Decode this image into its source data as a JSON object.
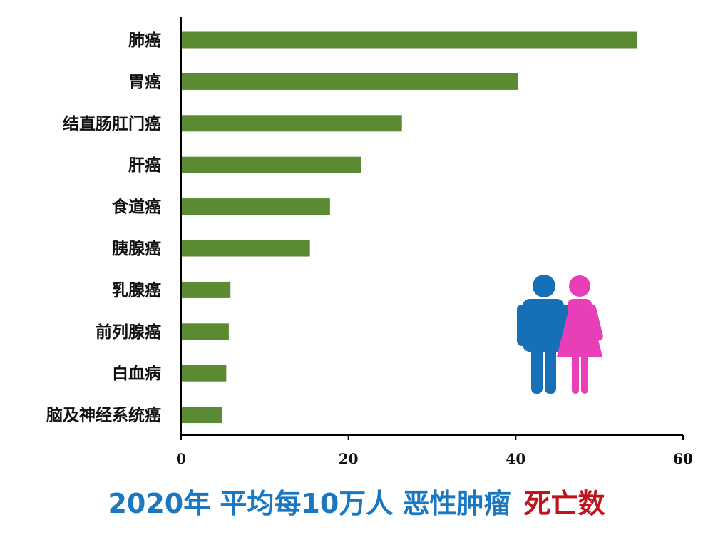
{
  "chart_data": {
    "type": "bar",
    "orientation": "horizontal",
    "categories": [
      "肺癌",
      "胃癌",
      "结直肠肛门癌",
      "肝癌",
      "食道癌",
      "胰腺癌",
      "乳腺癌",
      "前列腺癌",
      "白血病",
      "脑及神经系统癌"
    ],
    "values": [
      54.5,
      40.3,
      26.4,
      21.5,
      17.8,
      15.4,
      5.9,
      5.7,
      5.4,
      4.9
    ],
    "xlim": [
      0,
      60
    ],
    "xticks": [
      "0",
      "20",
      "40",
      "60"
    ],
    "grid": false,
    "legend": "none",
    "title": "2020年 平均每10万人 恶性肿瘤",
    "title_highlight": "死亡数"
  },
  "colors": {
    "bar": "#5a8a32",
    "axis": "#000000",
    "title_main": "#1a78c2",
    "title_highlight": "#c0141c",
    "male_icon": "#1570b8",
    "female_icon": "#e83fb8"
  },
  "icons": {
    "male": "male-figure-icon",
    "female": "female-figure-icon"
  }
}
